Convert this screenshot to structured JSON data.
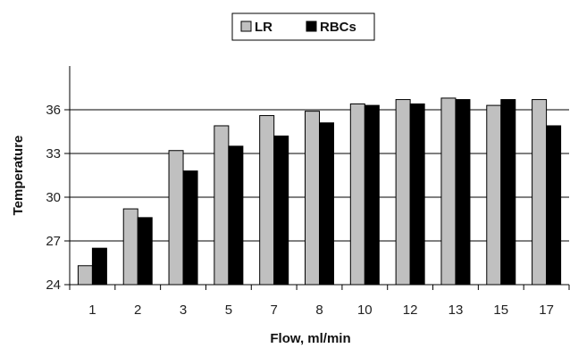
{
  "chart_data": {
    "type": "bar",
    "title": "",
    "xlabel": "Flow, ml/min",
    "ylabel": "Temperature",
    "categories": [
      "1",
      "2",
      "3",
      "5",
      "7",
      "8",
      "10",
      "12",
      "13",
      "15",
      "17"
    ],
    "series": [
      {
        "name": "LR",
        "color": "#c0c0c0",
        "values": [
          25.3,
          29.2,
          33.2,
          34.9,
          35.6,
          35.9,
          36.4,
          36.7,
          36.8,
          36.3,
          36.7
        ]
      },
      {
        "name": "RBCs",
        "color": "#000000",
        "values": [
          26.5,
          28.6,
          31.8,
          33.5,
          34.2,
          35.1,
          36.3,
          36.4,
          36.7,
          36.7,
          34.9
        ]
      }
    ],
    "ylim": [
      24,
      39
    ],
    "yticks": [
      24,
      27,
      30,
      33,
      36
    ],
    "grid": true,
    "legend": "top-center"
  }
}
